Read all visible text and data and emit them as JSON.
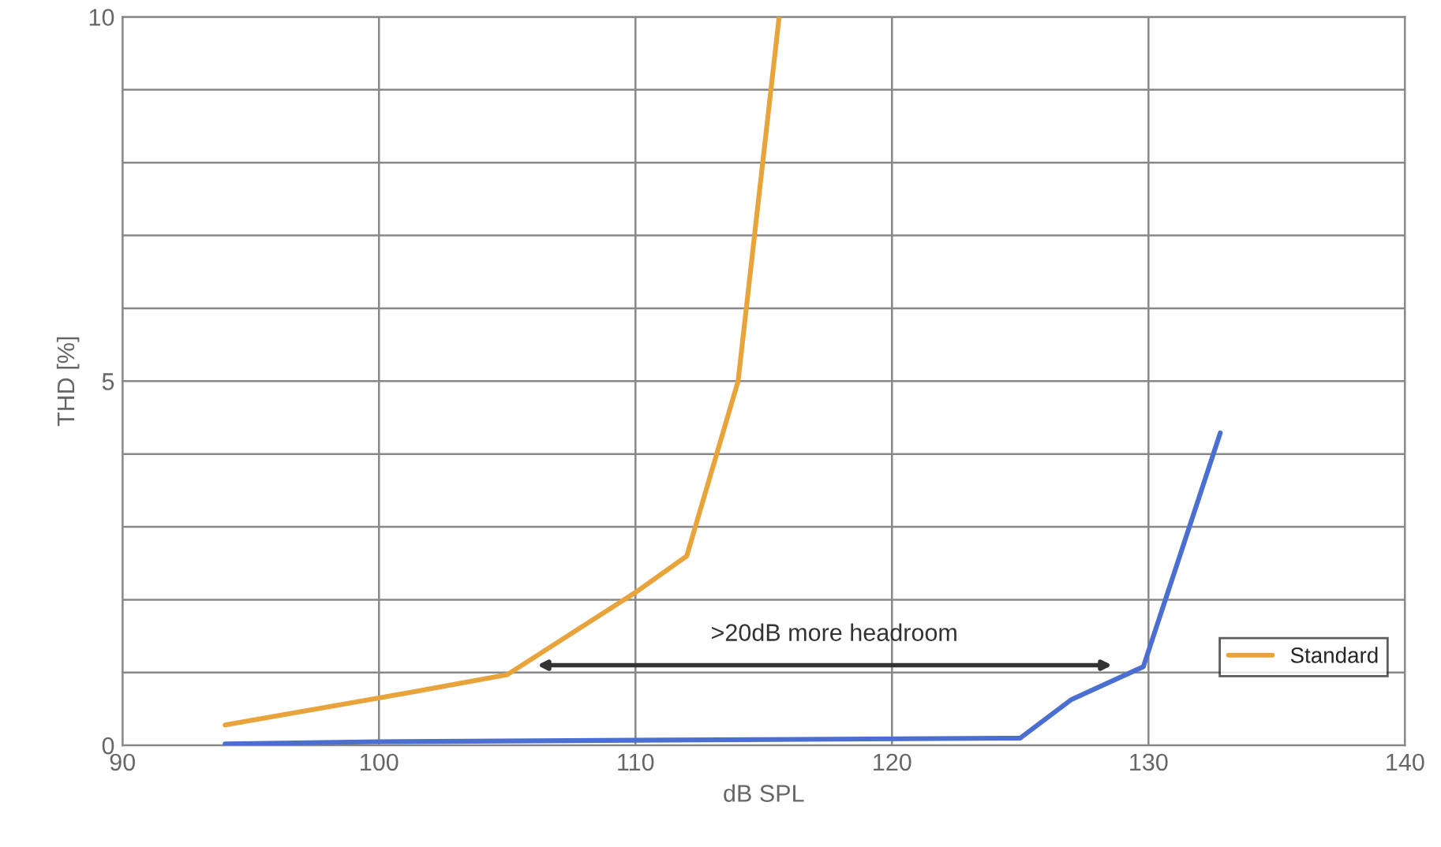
{
  "chart_data": {
    "type": "line",
    "xlabel": "dB SPL",
    "ylabel": "THD [%]",
    "xlim": [
      90,
      140
    ],
    "xticks": [
      90,
      100,
      110,
      120,
      130,
      140
    ],
    "ylim": [
      0,
      10
    ],
    "yticks": [
      0,
      {
        "value": 1,
        "label": null
      },
      {
        "value": 2,
        "label": null
      },
      {
        "value": 3,
        "label": null
      },
      {
        "value": 4,
        "label": null
      },
      5,
      {
        "value": 6,
        "label": null
      },
      {
        "value": 7,
        "label": null
      },
      {
        "value": 8,
        "label": null
      },
      {
        "value": 9,
        "label": null
      },
      10
    ],
    "grid": true,
    "legend": "bottom right",
    "marker": "none",
    "line_style": "solid",
    "series": [
      {
        "name": "Standard",
        "color": "#e8a33a",
        "x": [
          94,
          100,
          105,
          110,
          112,
          114,
          115.6
        ],
        "values": [
          0.28,
          0.65,
          0.97,
          2.1,
          2.6,
          5.0,
          10
        ]
      },
      {
        "color": "#4a6fd0",
        "x": [
          94,
          100,
          110,
          125,
          127,
          129.8,
          132.8
        ],
        "values": [
          0.02,
          0.05,
          0.07,
          0.1,
          0.63,
          1.08,
          4.29
        ]
      }
    ],
    "annotations": [
      ">20dB more headroom"
    ]
  }
}
